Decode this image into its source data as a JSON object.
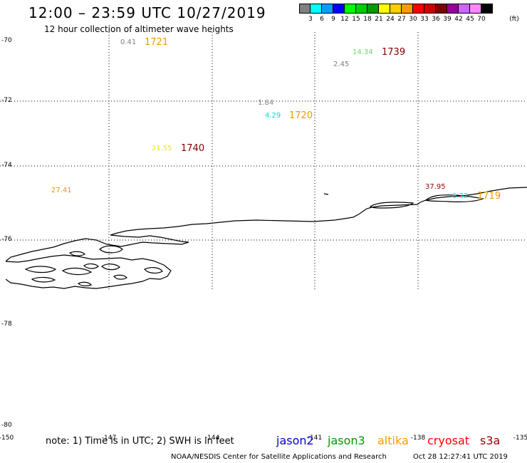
{
  "header": {
    "title": "12:00 – 23:59 UTC 10/27/2019",
    "subtitle": "12 hour collection of altimeter wave heights"
  },
  "colorbar": {
    "unit": "(ft)",
    "bins": [
      {
        "label": "3",
        "color": "#808080"
      },
      {
        "label": "6",
        "color": "#00ffff"
      },
      {
        "label": "9",
        "color": "#00a0ff"
      },
      {
        "label": "12",
        "color": "#0000ff"
      },
      {
        "label": "15",
        "color": "#00ff00"
      },
      {
        "label": "18",
        "color": "#00cc00"
      },
      {
        "label": "21",
        "color": "#009900"
      },
      {
        "label": "24",
        "color": "#ffff00"
      },
      {
        "label": "27",
        "color": "#ffcc00"
      },
      {
        "label": "30",
        "color": "#ff9900"
      },
      {
        "label": "33",
        "color": "#ff0000"
      },
      {
        "label": "36",
        "color": "#cc0000"
      },
      {
        "label": "39",
        "color": "#800000"
      },
      {
        "label": "42",
        "color": "#990099"
      },
      {
        "label": "45",
        "color": "#cc66ff"
      },
      {
        "label": "70",
        "color": "#ff88ff"
      },
      {
        "label": "",
        "color": "#000000"
      }
    ]
  },
  "map": {
    "lat_labels": [
      "-70",
      "-72",
      "-74",
      "-76",
      "-78",
      "-80"
    ],
    "lon_labels": [
      "-150",
      "-147",
      "-144",
      "-141",
      "-138",
      "-135"
    ],
    "wave_heights": [
      {
        "value": "0.41",
        "color": "#808080"
      },
      {
        "value": "14.34",
        "color": "#66dd66"
      },
      {
        "value": "2.45",
        "color": "#808080"
      },
      {
        "value": "1.84",
        "color": "#808080"
      },
      {
        "value": "4.29",
        "color": "#00dddd"
      },
      {
        "value": "21.55",
        "color": "#eeee00"
      },
      {
        "value": "27.41",
        "color": "#ee9900"
      },
      {
        "value": "37.95",
        "color": "#990000"
      },
      {
        "value": "6.32",
        "color": "#00dddd"
      }
    ],
    "pass_times": [
      {
        "value": "1721",
        "color": "#ee9900"
      },
      {
        "value": "1739",
        "color": "#800000"
      },
      {
        "value": "1720",
        "color": "#ee9900"
      },
      {
        "value": "1740",
        "color": "#800000"
      },
      {
        "value": "1719",
        "color": "#ee9900"
      }
    ]
  },
  "footer": {
    "note": "note: 1) Time is in UTC; 2) SWH is in feet",
    "satellites": [
      {
        "name": "jason2",
        "color": "#0000cc"
      },
      {
        "name": "jason3",
        "color": "#009900"
      },
      {
        "name": "altika",
        "color": "#ff9900"
      },
      {
        "name": "cryosat",
        "color": "#ff0000"
      },
      {
        "name": "s3a",
        "color": "#990000"
      }
    ],
    "credit": "NOAA/NESDIS Center for Satellite Applications and Research",
    "timestamp": "Oct 28 12:27:41 UTC 2019"
  }
}
